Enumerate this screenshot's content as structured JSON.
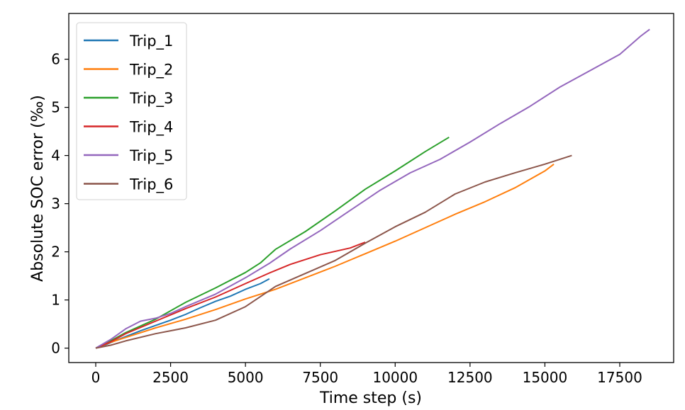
{
  "chart_data": {
    "type": "line",
    "xlabel": "Time step (s)",
    "ylabel": "Absolute SOC error (‰)",
    "xlim": [
      -900,
      19300
    ],
    "ylim": [
      -0.3,
      6.95
    ],
    "xticks": [
      0,
      2500,
      5000,
      7500,
      10000,
      12500,
      15000,
      17500
    ],
    "yticks": [
      0,
      1,
      2,
      3,
      4,
      5,
      6
    ],
    "grid": false,
    "legend_position": "top-left",
    "series": [
      {
        "name": "Trip_1",
        "color": "#1f77b4",
        "x": [
          0,
          300,
          600,
          1000,
          1500,
          2000,
          2500,
          3000,
          3500,
          4000,
          4500,
          5000,
          5500,
          5800
        ],
        "y": [
          0,
          0.06,
          0.14,
          0.24,
          0.36,
          0.47,
          0.58,
          0.7,
          0.84,
          0.97,
          1.08,
          1.22,
          1.34,
          1.44
        ]
      },
      {
        "name": "Trip_2",
        "color": "#ff7f0e",
        "x": [
          0,
          500,
          1000,
          2000,
          3000,
          4000,
          5000,
          6000,
          7000,
          8000,
          9000,
          10000,
          11000,
          12000,
          13000,
          14000,
          15000,
          15300
        ],
        "y": [
          0,
          0.12,
          0.22,
          0.42,
          0.6,
          0.8,
          1.02,
          1.22,
          1.46,
          1.7,
          1.96,
          2.22,
          2.5,
          2.78,
          3.04,
          3.33,
          3.68,
          3.82
        ]
      },
      {
        "name": "Trip_3",
        "color": "#2ca02c",
        "x": [
          0,
          500,
          1000,
          2000,
          3000,
          4000,
          5000,
          5500,
          6000,
          7000,
          8000,
          9000,
          10000,
          11000,
          11800
        ],
        "y": [
          0,
          0.15,
          0.32,
          0.6,
          0.95,
          1.25,
          1.57,
          1.77,
          2.05,
          2.42,
          2.85,
          3.3,
          3.68,
          4.08,
          4.38
        ]
      },
      {
        "name": "Trip_4",
        "color": "#d62728",
        "x": [
          0,
          500,
          1000,
          2000,
          3000,
          4000,
          5000,
          5800,
          6500,
          7500,
          8500,
          9000
        ],
        "y": [
          0,
          0.13,
          0.3,
          0.56,
          0.82,
          1.06,
          1.34,
          1.56,
          1.74,
          1.94,
          2.08,
          2.2
        ]
      },
      {
        "name": "Trip_5",
        "color": "#9467bd",
        "x": [
          0,
          500,
          1000,
          1500,
          2000,
          2500,
          3000,
          4000,
          5000,
          5800,
          6500,
          7500,
          8500,
          9500,
          10500,
          11500,
          12500,
          13500,
          14500,
          15500,
          16500,
          17500,
          18200,
          18500
        ],
        "y": [
          0,
          0.18,
          0.4,
          0.56,
          0.62,
          0.72,
          0.86,
          1.12,
          1.46,
          1.76,
          2.06,
          2.44,
          2.86,
          3.28,
          3.64,
          3.92,
          4.28,
          4.66,
          5.02,
          5.42,
          5.76,
          6.1,
          6.48,
          6.62
        ]
      },
      {
        "name": "Trip_6",
        "color": "#8c564b",
        "x": [
          0,
          500,
          1000,
          2000,
          3000,
          4000,
          5000,
          6000,
          7000,
          8000,
          9000,
          10000,
          11000,
          12000,
          13000,
          14000,
          15000,
          15900
        ],
        "y": [
          0,
          0.06,
          0.15,
          0.3,
          0.42,
          0.58,
          0.86,
          1.28,
          1.55,
          1.82,
          2.18,
          2.52,
          2.82,
          3.2,
          3.45,
          3.64,
          3.82,
          4.0
        ]
      }
    ]
  }
}
